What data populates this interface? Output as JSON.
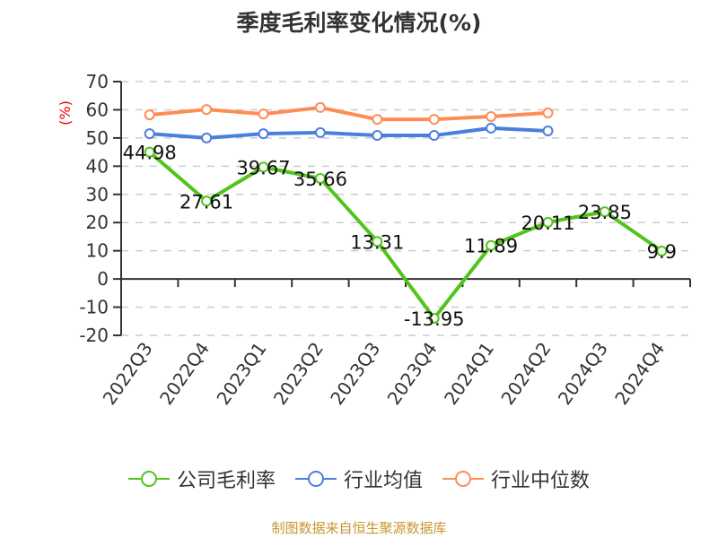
{
  "title": "季度毛利率变化情况(%)",
  "y_axis_unit": "(%)",
  "source": "制图数据来自恒生聚源数据库",
  "colors": {
    "company": "#52c41a",
    "industry_avg": "#4a7fe0",
    "industry_median": "#ff8c55",
    "axis": "#333333",
    "grid": "#cccccc",
    "unit_label": "#ee0000",
    "source": "#c8962d"
  },
  "legend": [
    {
      "name": "公司毛利率",
      "color": "#52c41a"
    },
    {
      "name": "行业均值",
      "color": "#4a7fe0"
    },
    {
      "name": "行业中位数",
      "color": "#ff8c55"
    }
  ],
  "chart_data": {
    "type": "line",
    "title": "季度毛利率变化情况(%)",
    "xlabel": "",
    "ylabel": "(%)",
    "ylim": [
      -20,
      70
    ],
    "yticks": [
      70,
      60,
      50,
      40,
      30,
      20,
      10,
      0,
      -10,
      -20
    ],
    "grid": true,
    "legend_position": "bottom",
    "categories": [
      "2022Q3",
      "2022Q4",
      "2023Q1",
      "2023Q2",
      "2023Q3",
      "2023Q4",
      "2024Q1",
      "2024Q2",
      "2024Q3",
      "2024Q4"
    ],
    "series": [
      {
        "name": "公司毛利率",
        "values": [
          44.98,
          27.61,
          39.67,
          35.66,
          13.31,
          -13.95,
          11.89,
          20.11,
          23.85,
          9.9
        ],
        "labels": [
          "44.98",
          "27.61",
          "39.67",
          "35.66",
          "13.31",
          "-13.95",
          "11.89",
          "20.11",
          "23.85",
          "9.9"
        ]
      },
      {
        "name": "行业均值",
        "values": [
          51.5,
          50.0,
          51.5,
          51.9,
          50.9,
          50.9,
          53.5,
          52.5,
          null,
          null
        ]
      },
      {
        "name": "行业中位数",
        "values": [
          58.2,
          60.1,
          58.5,
          60.8,
          56.6,
          56.6,
          57.6,
          58.9,
          null,
          null
        ]
      }
    ]
  }
}
